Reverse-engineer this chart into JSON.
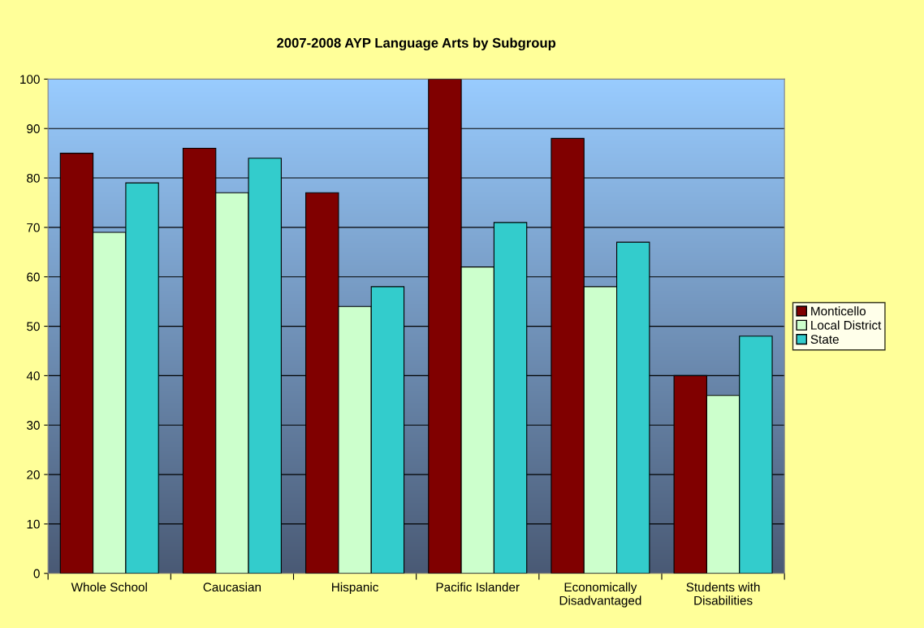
{
  "chart_data": {
    "type": "bar",
    "title": "2007-2008 AYP Language Arts by Subgroup",
    "categories": [
      "Whole School",
      "Caucasian",
      "Hispanic",
      "Pacific Islander",
      "Economically\nDisadvantaged",
      "Students with\nDisabilities"
    ],
    "series": [
      {
        "name": "Monticello",
        "color": "#800000",
        "values": [
          85,
          86,
          77,
          100,
          88,
          40
        ]
      },
      {
        "name": "Local District",
        "color": "#ccffcc",
        "values": [
          69,
          77,
          54,
          62,
          58,
          36
        ]
      },
      {
        "name": "State",
        "color": "#33cccc",
        "values": [
          79,
          84,
          58,
          71,
          67,
          48
        ]
      }
    ],
    "ylim": [
      0,
      100
    ],
    "yticks": [
      0,
      10,
      20,
      30,
      40,
      50,
      60,
      70,
      80,
      90,
      100
    ],
    "grid": "y",
    "legend": "right"
  }
}
